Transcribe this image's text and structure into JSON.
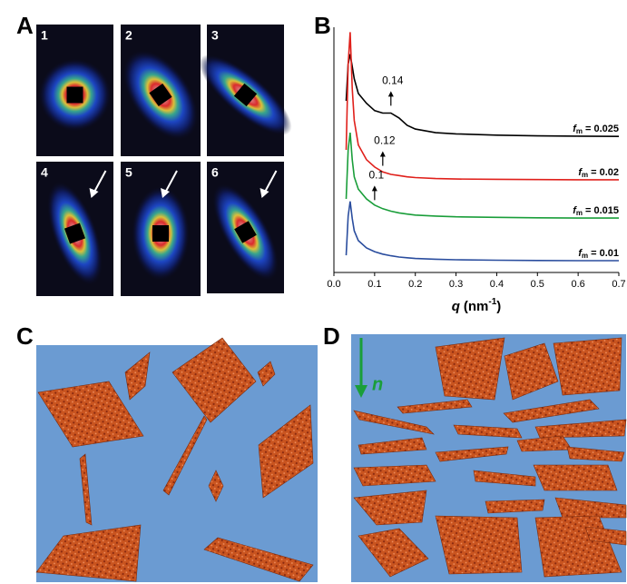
{
  "panels": {
    "A": {
      "letter": "A",
      "images": [
        "1",
        "2",
        "3",
        "4",
        "5",
        "6"
      ]
    },
    "B": {
      "letter": "B"
    },
    "C": {
      "letter": "C"
    },
    "D": {
      "letter": "D",
      "director": "n"
    }
  },
  "chart_data": {
    "type": "line",
    "x": [
      0.03,
      0.035,
      0.04,
      0.045,
      0.05,
      0.06,
      0.08,
      0.1,
      0.12,
      0.14,
      0.16,
      0.18,
      0.2,
      0.25,
      0.3,
      0.4,
      0.5,
      0.6,
      0.7
    ],
    "series": [
      {
        "name": "= 0.025",
        "color": "#000000",
        "values": [
          7.0,
          8.5,
          8.9,
          8.4,
          7.9,
          7.3,
          6.9,
          6.6,
          6.5,
          6.5,
          6.3,
          6.0,
          5.85,
          5.7,
          5.65,
          5.6,
          5.57,
          5.56,
          5.55
        ]
      },
      {
        "name": "= 0.02",
        "color": "#e0201b",
        "values": [
          5.0,
          8.5,
          9.8,
          7.5,
          6.2,
          5.2,
          4.6,
          4.3,
          4.1,
          4.0,
          3.95,
          3.9,
          3.87,
          3.83,
          3.81,
          3.8,
          3.79,
          3.78,
          3.78
        ]
      },
      {
        "name": "= 0.015",
        "color": "#1a9e3a",
        "values": [
          3.0,
          5.0,
          5.7,
          4.6,
          3.9,
          3.4,
          3.0,
          2.75,
          2.6,
          2.5,
          2.43,
          2.38,
          2.34,
          2.3,
          2.27,
          2.25,
          2.23,
          2.22,
          2.22
        ]
      },
      {
        "name": "= 0.01",
        "color": "#2a4d9e",
        "values": [
          0.7,
          2.3,
          2.9,
          2.2,
          1.7,
          1.3,
          1.0,
          0.85,
          0.75,
          0.68,
          0.63,
          0.6,
          0.57,
          0.54,
          0.52,
          0.5,
          0.49,
          0.48,
          0.48
        ]
      }
    ],
    "legend_symbol": "f",
    "legend_subscript": "m",
    "xlabel": {
      "symbol": "q",
      "unit": "(nm",
      "exponent": "-1",
      "close": ")"
    },
    "xlim": [
      0,
      0.7
    ],
    "ylim": [
      0,
      10
    ],
    "xticks": [
      {
        "value": 0,
        "label": "0.0"
      },
      0.1,
      0.2,
      0.3,
      0.4,
      0.5,
      0.6,
      0.7
    ],
    "annotations": [
      {
        "text": "0.14",
        "x": 0.14,
        "y": 6.8
      },
      {
        "text": "0.12",
        "x": 0.12,
        "y": 4.35
      },
      {
        "text": "0.1",
        "x": 0.1,
        "y": 2.95
      }
    ]
  }
}
